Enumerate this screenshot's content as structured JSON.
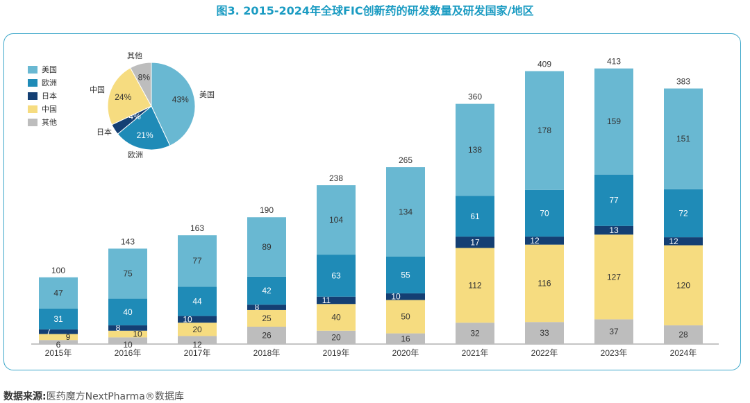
{
  "title": "图3. 2015-2024年全球FIC创新药的研发数量及研发国家/地区",
  "source": {
    "label": "数据来源:",
    "text": "医药魔方NextPharma®数据库"
  },
  "colors": {
    "美国": "#69b8d2",
    "欧洲": "#1f8bb7",
    "日本": "#143f73",
    "中国": "#f6dc80",
    "其他": "#bdbdbd"
  },
  "chart_data": [
    {
      "type": "bar",
      "stacked": true,
      "categories": [
        "2015年",
        "2016年",
        "2017年",
        "2018年",
        "2019年",
        "2020年",
        "2021年",
        "2022年",
        "2023年",
        "2024年"
      ],
      "series": [
        {
          "name": "其他",
          "values": [
            6,
            10,
            12,
            26,
            20,
            16,
            32,
            33,
            37,
            28
          ]
        },
        {
          "name": "中国",
          "values": [
            9,
            10,
            20,
            25,
            40,
            50,
            112,
            116,
            127,
            120
          ]
        },
        {
          "name": "日本",
          "values": [
            7,
            8,
            10,
            8,
            11,
            10,
            17,
            12,
            13,
            12
          ]
        },
        {
          "name": "欧洲",
          "values": [
            31,
            40,
            44,
            42,
            63,
            55,
            61,
            70,
            77,
            72
          ]
        },
        {
          "name": "美国",
          "values": [
            47,
            75,
            77,
            89,
            104,
            134,
            138,
            178,
            159,
            151
          ]
        }
      ],
      "totals": [
        100,
        143,
        163,
        190,
        238,
        265,
        360,
        409,
        413,
        383
      ],
      "ylim": [
        0,
        420
      ],
      "legend": [
        "美国",
        "欧洲",
        "日本",
        "中国",
        "其他"
      ],
      "legend_position": "top-left"
    },
    {
      "type": "pie",
      "labels": [
        "美国",
        "欧洲",
        "日本",
        "中国",
        "其他"
      ],
      "values": [
        43,
        21,
        4,
        24,
        8
      ],
      "value_labels": [
        "43%",
        "21%",
        "4%",
        "24%",
        "8%"
      ]
    }
  ]
}
